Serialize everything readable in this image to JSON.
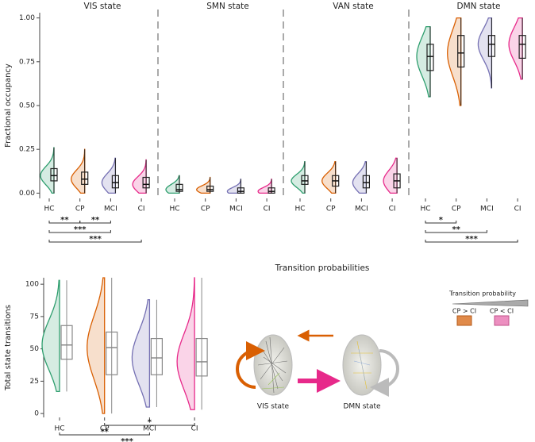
{
  "chart_data": [
    {
      "type": "box",
      "ylabel": "Fractional occupancy",
      "ylim": [
        -0.03,
        1.03
      ],
      "yticks": [
        {
          "value": 0,
          "label": "0.00"
        },
        0.25,
        {
          "value": 0.5,
          "label": "0.50"
        },
        0.75,
        {
          "value": 1,
          "label": "1.00"
        }
      ],
      "categories": [
        "HC",
        "CP",
        "MCI",
        "CI"
      ],
      "colors": [
        "#2e9e6e",
        "#d95f02",
        "#7570b3",
        "#e7298a"
      ],
      "panels": [
        {
          "title": "VIS state",
          "boxes": [
            {
              "median": 0.1,
              "q1": 0.07,
              "q3": 0.14,
              "low": 0.0,
              "high": 0.26
            },
            {
              "median": 0.08,
              "q1": 0.05,
              "q3": 0.12,
              "low": 0.0,
              "high": 0.25
            },
            {
              "median": 0.06,
              "q1": 0.03,
              "q3": 0.1,
              "low": 0.0,
              "high": 0.2
            },
            {
              "median": 0.05,
              "q1": 0.03,
              "q3": 0.09,
              "low": 0.0,
              "high": 0.19
            }
          ],
          "comparisons": [
            {
              "from": "HC",
              "to": "CP",
              "label": "**"
            },
            {
              "from": "CP",
              "to": "MCI",
              "label": "**"
            },
            {
              "from": "HC",
              "to": "MCI",
              "label": "***"
            },
            {
              "from": "HC",
              "to": "CI",
              "label": "***"
            }
          ]
        },
        {
          "title": "SMN state",
          "boxes": [
            {
              "median": 0.02,
              "q1": 0.01,
              "q3": 0.05,
              "low": 0.0,
              "high": 0.1
            },
            {
              "median": 0.02,
              "q1": 0.01,
              "q3": 0.04,
              "low": 0.0,
              "high": 0.09
            },
            {
              "median": 0.01,
              "q1": 0.0,
              "q3": 0.03,
              "low": 0.0,
              "high": 0.08
            },
            {
              "median": 0.01,
              "q1": 0.0,
              "q3": 0.03,
              "low": 0.0,
              "high": 0.08
            }
          ],
          "comparisons": []
        },
        {
          "title": "VAN state",
          "boxes": [
            {
              "median": 0.07,
              "q1": 0.05,
              "q3": 0.1,
              "low": 0.0,
              "high": 0.18
            },
            {
              "median": 0.07,
              "q1": 0.04,
              "q3": 0.1,
              "low": 0.0,
              "high": 0.18
            },
            {
              "median": 0.06,
              "q1": 0.03,
              "q3": 0.1,
              "low": 0.0,
              "high": 0.18
            },
            {
              "median": 0.07,
              "q1": 0.03,
              "q3": 0.11,
              "low": 0.0,
              "high": 0.2
            }
          ],
          "comparisons": []
        },
        {
          "title": "DMN state",
          "boxes": [
            {
              "median": 0.78,
              "q1": 0.7,
              "q3": 0.85,
              "low": 0.55,
              "high": 0.95
            },
            {
              "median": 0.8,
              "q1": 0.72,
              "q3": 0.9,
              "low": 0.5,
              "high": 1.0
            },
            {
              "median": 0.85,
              "q1": 0.78,
              "q3": 0.9,
              "low": 0.6,
              "high": 1.0
            },
            {
              "median": 0.85,
              "q1": 0.77,
              "q3": 0.9,
              "low": 0.65,
              "high": 1.0
            }
          ],
          "comparisons": [
            {
              "from": "HC",
              "to": "CP",
              "label": "*"
            },
            {
              "from": "HC",
              "to": "MCI",
              "label": "**"
            },
            {
              "from": "HC",
              "to": "CI",
              "label": "***"
            }
          ]
        }
      ]
    },
    {
      "type": "box",
      "ylabel": "Total state transitions",
      "ylim": [
        -3,
        105
      ],
      "yticks": [
        0,
        25,
        50,
        75,
        100
      ],
      "categories": [
        "HC",
        "CP",
        "MCI",
        "CI"
      ],
      "colors": [
        "#2e9e6e",
        "#d95f02",
        "#7570b3",
        "#e7298a"
      ],
      "panels": [
        {
          "boxes": [
            {
              "median": 53,
              "q1": 42,
              "q3": 68,
              "low": 17,
              "high": 103
            },
            {
              "median": 51,
              "q1": 30,
              "q3": 63,
              "low": 0,
              "high": 105
            },
            {
              "median": 43,
              "q1": 30,
              "q3": 58,
              "low": 5,
              "high": 88
            },
            {
              "median": 40,
              "q1": 29,
              "q3": 58,
              "low": 3,
              "high": 105
            }
          ],
          "comparisons": [
            {
              "from": "CP",
              "to": "CI",
              "label": "*"
            },
            {
              "from": "HC",
              "to": "MCI",
              "label": "**"
            },
            {
              "from": "HC",
              "to": "CI",
              "label": "***"
            }
          ]
        }
      ]
    }
  ],
  "diagram": {
    "title": "Transition probabilities",
    "legend_title": "Transition probability",
    "legend_items": [
      "CP > CI",
      "CP < CI"
    ],
    "nodes": [
      "VIS state",
      "DMN state"
    ]
  }
}
